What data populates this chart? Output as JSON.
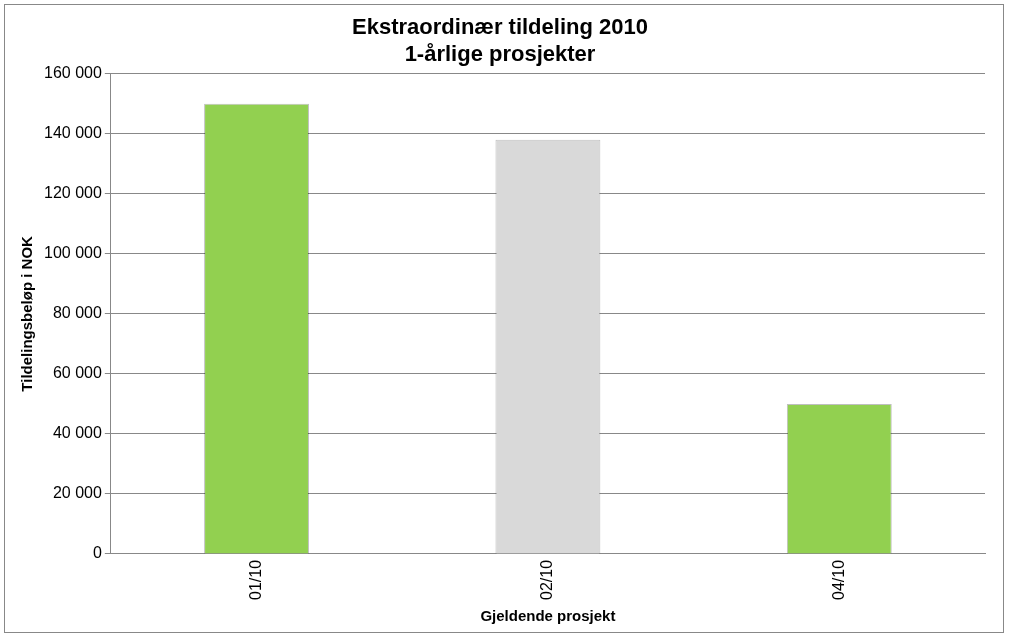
{
  "chart_data": {
    "type": "bar",
    "title": "Ekstraordinær tildeling 2010",
    "subtitle": "1-årlige prosjekter",
    "xlabel": "Gjeldende prosjekt",
    "ylabel": "Tildelingsbeløp i NOK",
    "categories": [
      "01/10",
      "02/10",
      "04/10"
    ],
    "values": [
      150000,
      138000,
      50000
    ],
    "colors": [
      "#92d050",
      "#d9d9d9",
      "#92d050"
    ],
    "ylim": [
      0,
      160000
    ],
    "yticks": [
      {
        "value": 0,
        "label": "0"
      },
      {
        "value": 20000,
        "label": "20 000"
      },
      {
        "value": 40000,
        "label": "40 000"
      },
      {
        "value": 60000,
        "label": "60 000"
      },
      {
        "value": 80000,
        "label": "80 000"
      },
      {
        "value": 100000,
        "label": "100 000"
      },
      {
        "value": 120000,
        "label": "120 000"
      },
      {
        "value": 140000,
        "label": "140 000"
      },
      {
        "value": 160000,
        "label": "160 000"
      }
    ],
    "grid": "y",
    "legend": false
  }
}
